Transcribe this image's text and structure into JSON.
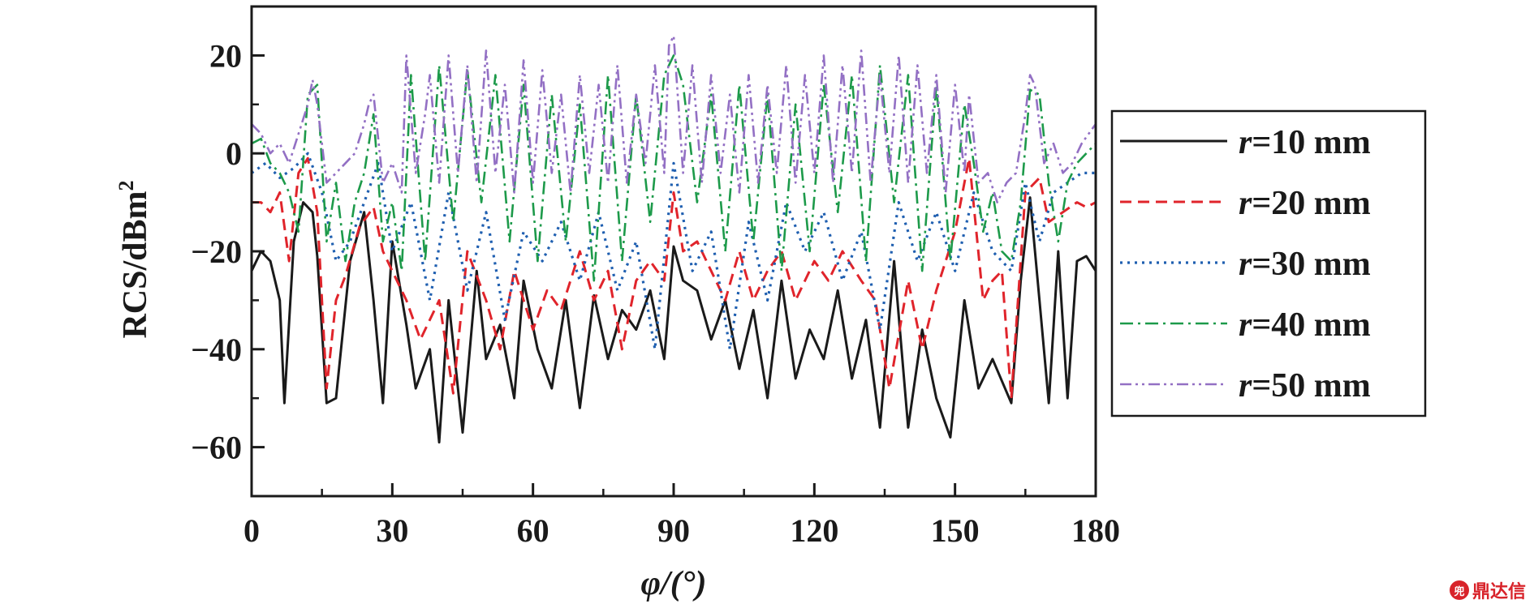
{
  "chart_data": {
    "type": "line",
    "xlabel": "φ/(°)",
    "ylabel": "RCS/dBm",
    "ylabel_superscript": "2",
    "xlim": [
      0,
      180
    ],
    "ylim": [
      -70,
      30
    ],
    "xticks": [
      0,
      30,
      60,
      90,
      120,
      150,
      180
    ],
    "yticks": [
      -60,
      -40,
      -20,
      0,
      20
    ],
    "grid": false,
    "legend_position": "right",
    "series": [
      {
        "name": "r=10 mm",
        "name_var": "r",
        "name_rest": "=10 mm",
        "color": "#1a1a1a",
        "dash": "solid",
        "x": [
          0,
          2,
          4,
          6,
          7,
          9,
          11,
          13,
          14,
          16,
          18,
          21,
          24,
          26,
          28,
          30,
          33,
          35,
          38,
          40,
          42,
          45,
          48,
          50,
          53,
          56,
          58,
          61,
          64,
          67,
          70,
          73,
          76,
          79,
          82,
          85,
          88,
          90,
          92,
          95,
          98,
          101,
          104,
          107,
          110,
          113,
          116,
          119,
          122,
          125,
          128,
          131,
          134,
          137,
          140,
          143,
          146,
          149,
          152,
          155,
          158,
          162,
          164,
          166,
          168,
          170,
          172,
          174,
          176,
          178,
          180
        ],
        "values": [
          -24,
          -20,
          -22,
          -30,
          -51,
          -18,
          -10,
          -12,
          -21,
          -51,
          -50,
          -22,
          -12,
          -30,
          -51,
          -18,
          -35,
          -48,
          -40,
          -59,
          -30,
          -57,
          -24,
          -42,
          -35,
          -50,
          -26,
          -40,
          -48,
          -30,
          -52,
          -29,
          -42,
          -32,
          -36,
          -28,
          -42,
          -19,
          -26,
          -28,
          -38,
          -30,
          -44,
          -32,
          -50,
          -26,
          -46,
          -36,
          -42,
          -28,
          -46,
          -34,
          -56,
          -22,
          -56,
          -36,
          -50,
          -58,
          -30,
          -48,
          -42,
          -51,
          -26,
          -9,
          -30,
          -51,
          -20,
          -50,
          -22,
          -21,
          -24
        ]
      },
      {
        "name": "r=20 mm",
        "name_var": "r",
        "name_rest": "=20 mm",
        "color": "#e0242b",
        "dash": "dashed",
        "x": [
          0,
          2,
          4,
          6,
          8,
          10,
          12,
          14,
          16,
          18,
          20,
          23,
          26,
          28,
          30,
          33,
          36,
          40,
          43,
          46,
          50,
          53,
          56,
          60,
          63,
          66,
          70,
          73,
          76,
          79,
          82,
          85,
          88,
          90,
          92,
          95,
          98,
          101,
          104,
          107,
          110,
          113,
          116,
          120,
          123,
          126,
          130,
          133,
          136,
          140,
          143,
          146,
          150,
          153,
          156,
          158,
          160,
          162,
          165,
          168,
          170,
          173,
          176,
          178,
          180
        ],
        "values": [
          -10,
          -10,
          -12,
          -8,
          -22,
          -4,
          -1,
          -12,
          -48,
          -30,
          -25,
          -15,
          -11,
          -20,
          -24,
          -30,
          -38,
          -30,
          -49,
          -20,
          -30,
          -40,
          -24,
          -36,
          -28,
          -32,
          -20,
          -30,
          -24,
          -40,
          -26,
          -22,
          -26,
          -8,
          -20,
          -18,
          -24,
          -30,
          -20,
          -30,
          -24,
          -20,
          -30,
          -22,
          -26,
          -20,
          -26,
          -30,
          -48,
          -26,
          -40,
          -28,
          -16,
          -1,
          -30,
          -26,
          -24,
          -50,
          -8,
          -5,
          -14,
          -12,
          -10,
          -11,
          -10
        ]
      },
      {
        "name": "r=30 mm",
        "name_var": "r",
        "name_rest": "=30 mm",
        "color": "#1f5fb0",
        "dash": "dotted",
        "x": [
          0,
          3,
          6,
          9,
          12,
          15,
          18,
          21,
          24,
          27,
          30,
          34,
          38,
          42,
          46,
          50,
          54,
          58,
          62,
          66,
          70,
          74,
          78,
          82,
          86,
          90,
          94,
          98,
          102,
          106,
          110,
          114,
          118,
          122,
          126,
          130,
          134,
          138,
          142,
          146,
          150,
          154,
          158,
          162,
          165,
          168,
          171,
          174,
          177,
          180
        ],
        "values": [
          -4,
          -2,
          -5,
          -3,
          0,
          -8,
          -22,
          -18,
          -10,
          -2,
          -20,
          -10,
          -30,
          -8,
          -28,
          -12,
          -34,
          -16,
          -22,
          -14,
          -26,
          -12,
          -28,
          -18,
          -40,
          -2,
          -24,
          -16,
          -40,
          -14,
          -30,
          -10,
          -20,
          -12,
          -26,
          -16,
          -36,
          -10,
          -22,
          -12,
          -24,
          -8,
          -20,
          -24,
          -6,
          -18,
          -8,
          -6,
          -4,
          -4
        ]
      },
      {
        "name": "r=40 mm",
        "name_var": "r",
        "name_rest": "=40 mm",
        "color": "#1d9a4a",
        "dash": "dashdot",
        "x": [
          0,
          2,
          4,
          6,
          8,
          10,
          12,
          14,
          16,
          18,
          20,
          22,
          24,
          26,
          28,
          30,
          32,
          34,
          37,
          40,
          43,
          46,
          49,
          52,
          55,
          58,
          61,
          64,
          67,
          70,
          73,
          76,
          79,
          82,
          85,
          88,
          90,
          92,
          95,
          98,
          101,
          104,
          107,
          110,
          113,
          116,
          119,
          122,
          125,
          128,
          131,
          134,
          137,
          140,
          143,
          146,
          149,
          152,
          154,
          156,
          158,
          160,
          162,
          164,
          166,
          168,
          170,
          172,
          174,
          176,
          178,
          180
        ],
        "values": [
          2,
          3,
          -2,
          -4,
          -8,
          -16,
          12,
          14,
          -18,
          -6,
          -22,
          -10,
          -4,
          8,
          -18,
          -10,
          -24,
          16,
          -22,
          18,
          -14,
          17,
          -10,
          16,
          -18,
          14,
          -22,
          12,
          -18,
          10,
          -26,
          16,
          -22,
          12,
          -14,
          16,
          20,
          14,
          -10,
          12,
          -20,
          14,
          -18,
          12,
          -24,
          10,
          -20,
          14,
          -12,
          16,
          -22,
          18,
          -10,
          16,
          -24,
          14,
          -22,
          10,
          -2,
          -16,
          -8,
          -20,
          -22,
          -10,
          13,
          12,
          -6,
          -18,
          -6,
          -2,
          0,
          2
        ]
      },
      {
        "name": "r=50 mm",
        "name_var": "r",
        "name_rest": "=50 mm",
        "color": "#9370c4",
        "dash": "dashdotdot",
        "x": [
          0,
          2,
          4,
          6,
          8,
          10,
          12,
          13,
          14,
          16,
          18,
          20,
          22,
          24,
          25,
          26,
          28,
          30,
          32,
          33,
          35,
          37,
          38,
          40,
          42,
          44,
          46,
          48,
          50,
          52,
          54,
          56,
          58,
          60,
          62,
          64,
          66,
          68,
          70,
          72,
          74,
          76,
          78,
          80,
          82,
          84,
          86,
          88,
          89,
          90,
          92,
          94,
          96,
          98,
          100,
          102,
          104,
          106,
          108,
          110,
          112,
          114,
          116,
          118,
          120,
          122,
          124,
          126,
          128,
          130,
          132,
          134,
          136,
          138,
          140,
          142,
          144,
          146,
          148,
          150,
          152,
          153,
          155,
          157,
          159,
          161,
          163,
          165,
          166,
          167,
          169,
          171,
          173,
          175,
          177,
          180
        ],
        "values": [
          6,
          4,
          0,
          2,
          -2,
          4,
          10,
          15,
          10,
          -6,
          -4,
          -2,
          0,
          6,
          10,
          12,
          -6,
          -2,
          -8,
          20,
          -4,
          8,
          16,
          -6,
          20,
          -4,
          18,
          -6,
          21,
          -4,
          14,
          -8,
          19,
          -6,
          17,
          -4,
          12,
          -8,
          16,
          -4,
          14,
          -6,
          18,
          -6,
          12,
          -2,
          18,
          -4,
          22,
          24,
          -4,
          18,
          -6,
          16,
          -4,
          12,
          -8,
          16,
          -6,
          14,
          -4,
          18,
          -6,
          16,
          -4,
          20,
          -6,
          18,
          -4,
          21,
          -6,
          16,
          -4,
          20,
          -6,
          18,
          -4,
          16,
          -8,
          14,
          -4,
          12,
          -6,
          -4,
          -10,
          -6,
          -4,
          8,
          16,
          14,
          -2,
          2,
          -4,
          -2,
          2,
          6
        ]
      }
    ]
  },
  "watermark": {
    "seal": "兜",
    "text": "鼎达信"
  }
}
